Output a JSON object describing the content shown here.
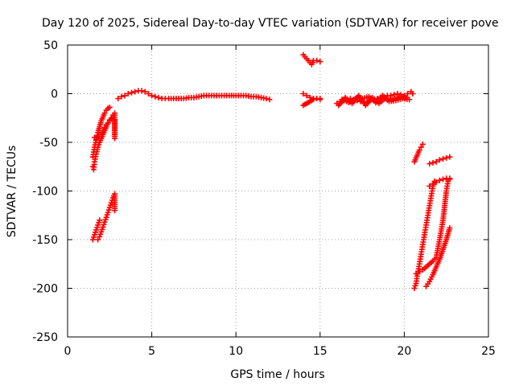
{
  "chart_data": {
    "type": "scatter",
    "title": "Day 120 of 2025, Sidereal Day-to-day VTEC variation (SDTVAR) for receiver pove",
    "xlabel": "GPS time / hours",
    "ylabel": "SDTVAR / TECUs",
    "xlim": [
      0,
      25
    ],
    "ylim": [
      -250,
      50
    ],
    "xticks": [
      0,
      5,
      10,
      15,
      20,
      25
    ],
    "yticks": [
      -250,
      -200,
      -150,
      -100,
      -50,
      0,
      50
    ],
    "xtick_labels": [
      "0",
      "5",
      "10",
      "15",
      "20",
      "25"
    ],
    "ytick_labels": [
      "-250",
      "-200",
      "-150",
      "-100",
      "-50",
      "0",
      "50"
    ],
    "grid": true,
    "legend": "none",
    "marker": "+",
    "color": "#ff0000",
    "series": [
      {
        "values": [
          [
            1.5,
            -65
          ],
          [
            1.6,
            -55
          ],
          [
            1.7,
            -48
          ],
          [
            1.8,
            -40
          ],
          [
            1.9,
            -34
          ],
          [
            2.0,
            -28
          ],
          [
            2.1,
            -24
          ],
          [
            2.2,
            -20
          ],
          [
            2.3,
            -17
          ],
          [
            2.4,
            -15
          ],
          [
            2.5,
            -14
          ]
        ]
      },
      {
        "values": [
          [
            1.5,
            -75
          ],
          [
            1.55,
            -78
          ],
          [
            1.6,
            -70
          ],
          [
            1.7,
            -62
          ],
          [
            1.8,
            -55
          ],
          [
            1.9,
            -50
          ],
          [
            2.0,
            -46
          ],
          [
            2.1,
            -42
          ],
          [
            2.2,
            -38
          ],
          [
            2.3,
            -34
          ],
          [
            2.4,
            -30
          ],
          [
            2.5,
            -27
          ],
          [
            2.6,
            -25
          ],
          [
            2.7,
            -22
          ],
          [
            2.8,
            -20
          ]
        ]
      },
      {
        "values": [
          [
            1.6,
            -45
          ],
          [
            1.7,
            -47
          ],
          [
            1.8,
            -44
          ],
          [
            1.9,
            -42
          ],
          [
            2.0,
            -40
          ],
          [
            2.1,
            -38
          ],
          [
            2.2,
            -35
          ],
          [
            2.3,
            -32
          ],
          [
            2.4,
            -30
          ],
          [
            2.5,
            -28
          ],
          [
            2.6,
            -26
          ],
          [
            2.7,
            -24
          ],
          [
            2.8,
            -22
          ],
          [
            2.8,
            -46
          ],
          [
            2.8,
            -42
          ],
          [
            2.8,
            -27
          ]
        ]
      },
      {
        "values": [
          [
            1.5,
            -150
          ],
          [
            1.6,
            -145
          ],
          [
            1.7,
            -140
          ],
          [
            1.8,
            -135
          ],
          [
            1.9,
            -130
          ]
        ]
      },
      {
        "values": [
          [
            1.8,
            -150
          ],
          [
            1.9,
            -147
          ],
          [
            2.0,
            -142
          ],
          [
            2.1,
            -137
          ],
          [
            2.2,
            -132
          ],
          [
            2.3,
            -127
          ],
          [
            2.4,
            -122
          ],
          [
            2.5,
            -117
          ],
          [
            2.6,
            -112
          ],
          [
            2.7,
            -107
          ],
          [
            2.8,
            -103
          ],
          [
            2.8,
            -120
          ]
        ]
      },
      {
        "values": [
          [
            3.0,
            -5
          ],
          [
            3.2,
            -3
          ],
          [
            3.4,
            -2
          ],
          [
            3.6,
            0
          ],
          [
            3.8,
            1
          ],
          [
            4.0,
            2
          ],
          [
            4.2,
            3
          ],
          [
            4.4,
            3
          ],
          [
            4.6,
            2
          ],
          [
            4.8,
            0
          ],
          [
            5.0,
            -2
          ],
          [
            5.2,
            -3
          ],
          [
            5.4,
            -4
          ],
          [
            5.6,
            -5
          ],
          [
            5.8,
            -5
          ],
          [
            6.0,
            -5
          ],
          [
            6.3,
            -5
          ],
          [
            6.6,
            -5
          ],
          [
            6.9,
            -5
          ],
          [
            7.2,
            -4
          ],
          [
            7.5,
            -4
          ],
          [
            7.8,
            -3
          ],
          [
            8.1,
            -2
          ],
          [
            8.4,
            -2
          ],
          [
            8.7,
            -2
          ],
          [
            9.0,
            -2
          ],
          [
            9.3,
            -2
          ],
          [
            9.6,
            -2
          ],
          [
            10.0,
            -2
          ],
          [
            10.3,
            -2
          ],
          [
            10.6,
            -2
          ],
          [
            10.9,
            -3
          ],
          [
            11.2,
            -3
          ],
          [
            11.5,
            -4
          ],
          [
            11.8,
            -5
          ],
          [
            12.0,
            -6
          ]
        ]
      },
      {
        "values": [
          [
            14.0,
            40
          ],
          [
            14.1,
            38
          ],
          [
            14.2,
            36
          ],
          [
            14.3,
            34
          ],
          [
            14.4,
            32
          ],
          [
            14.5,
            30
          ],
          [
            14.6,
            34
          ],
          [
            14.8,
            34
          ],
          [
            15.0,
            33
          ]
        ]
      },
      {
        "values": [
          [
            14.0,
            -12
          ],
          [
            14.1,
            -11
          ],
          [
            14.2,
            -10
          ],
          [
            14.3,
            -9
          ],
          [
            14.4,
            -8
          ],
          [
            14.5,
            -7
          ],
          [
            14.6,
            -6
          ],
          [
            14.8,
            -5
          ],
          [
            15.0,
            -5
          ]
        ]
      },
      {
        "values": [
          [
            14.0,
            0
          ],
          [
            14.2,
            -2
          ],
          [
            14.4,
            -4
          ],
          [
            14.6,
            -5
          ],
          [
            14.8,
            -5
          ],
          [
            15.0,
            -6
          ]
        ]
      },
      {
        "values": [
          [
            16.0,
            -10
          ],
          [
            16.2,
            -8
          ],
          [
            16.4,
            -7
          ],
          [
            16.6,
            -6
          ],
          [
            16.8,
            -5
          ],
          [
            17.0,
            -6
          ],
          [
            17.2,
            -7
          ],
          [
            17.4,
            -8
          ],
          [
            17.6,
            -9
          ],
          [
            17.8,
            -8
          ],
          [
            18.0,
            -7
          ],
          [
            18.2,
            -6
          ],
          [
            18.4,
            -5
          ],
          [
            18.6,
            -4
          ],
          [
            18.8,
            -3
          ],
          [
            19.0,
            -2
          ],
          [
            19.2,
            -2
          ],
          [
            19.4,
            -1
          ],
          [
            19.6,
            0
          ],
          [
            19.8,
            -1
          ],
          [
            20.0,
            -2
          ],
          [
            20.2,
            0
          ],
          [
            20.4,
            2
          ],
          [
            20.5,
            0
          ]
        ]
      },
      {
        "values": [
          [
            16.1,
            -12
          ],
          [
            16.5,
            -4
          ],
          [
            16.9,
            -10
          ],
          [
            17.3,
            -2
          ],
          [
            17.7,
            -12
          ],
          [
            18.1,
            -4
          ],
          [
            18.5,
            -10
          ],
          [
            18.9,
            -4
          ],
          [
            19.3,
            -6
          ],
          [
            19.7,
            -3
          ],
          [
            20.1,
            -4
          ]
        ]
      },
      {
        "values": [
          [
            16.3,
            -6
          ],
          [
            16.7,
            -9
          ],
          [
            17.1,
            -5
          ],
          [
            17.5,
            -5
          ],
          [
            17.9,
            -3
          ],
          [
            18.3,
            -9
          ],
          [
            18.7,
            -2
          ],
          [
            19.1,
            -8
          ],
          [
            19.5,
            -7
          ],
          [
            19.9,
            -5
          ],
          [
            20.3,
            -6
          ]
        ]
      },
      {
        "values": [
          [
            20.6,
            -70
          ],
          [
            20.7,
            -66
          ],
          [
            20.8,
            -62
          ],
          [
            20.9,
            -58
          ],
          [
            21.0,
            -55
          ],
          [
            21.1,
            -52
          ]
        ]
      },
      {
        "values": [
          [
            21.5,
            -72
          ],
          [
            21.7,
            -71
          ],
          [
            21.9,
            -70
          ],
          [
            22.1,
            -68
          ],
          [
            22.3,
            -67
          ],
          [
            22.5,
            -66
          ],
          [
            22.7,
            -65
          ]
        ]
      },
      {
        "values": [
          [
            20.6,
            -200
          ],
          [
            20.7,
            -195
          ],
          [
            20.8,
            -185
          ],
          [
            20.9,
            -175
          ],
          [
            21.0,
            -165
          ],
          [
            21.1,
            -155
          ],
          [
            21.2,
            -145
          ],
          [
            21.3,
            -135
          ],
          [
            21.4,
            -125
          ],
          [
            21.5,
            -115
          ],
          [
            21.6,
            -105
          ],
          [
            21.7,
            -95
          ],
          [
            21.8,
            -90
          ]
        ]
      },
      {
        "values": [
          [
            20.7,
            -185
          ],
          [
            20.9,
            -183
          ],
          [
            21.1,
            -181
          ],
          [
            21.3,
            -178
          ],
          [
            21.5,
            -175
          ],
          [
            21.7,
            -172
          ],
          [
            21.9,
            -168
          ],
          [
            22.1,
            -150
          ],
          [
            22.3,
            -130
          ],
          [
            22.4,
            -115
          ],
          [
            22.5,
            -100
          ],
          [
            22.6,
            -90
          ],
          [
            22.7,
            -88
          ]
        ]
      },
      {
        "values": [
          [
            21.3,
            -198
          ],
          [
            21.5,
            -193
          ],
          [
            21.7,
            -186
          ],
          [
            21.9,
            -178
          ],
          [
            22.1,
            -170
          ],
          [
            22.3,
            -160
          ],
          [
            22.5,
            -150
          ],
          [
            22.7,
            -138
          ]
        ]
      },
      {
        "values": [
          [
            21.5,
            -95
          ],
          [
            21.7,
            -93
          ],
          [
            21.9,
            -91
          ],
          [
            22.1,
            -89
          ],
          [
            22.3,
            -88
          ],
          [
            22.5,
            -87
          ],
          [
            22.7,
            -87
          ]
        ]
      }
    ]
  }
}
